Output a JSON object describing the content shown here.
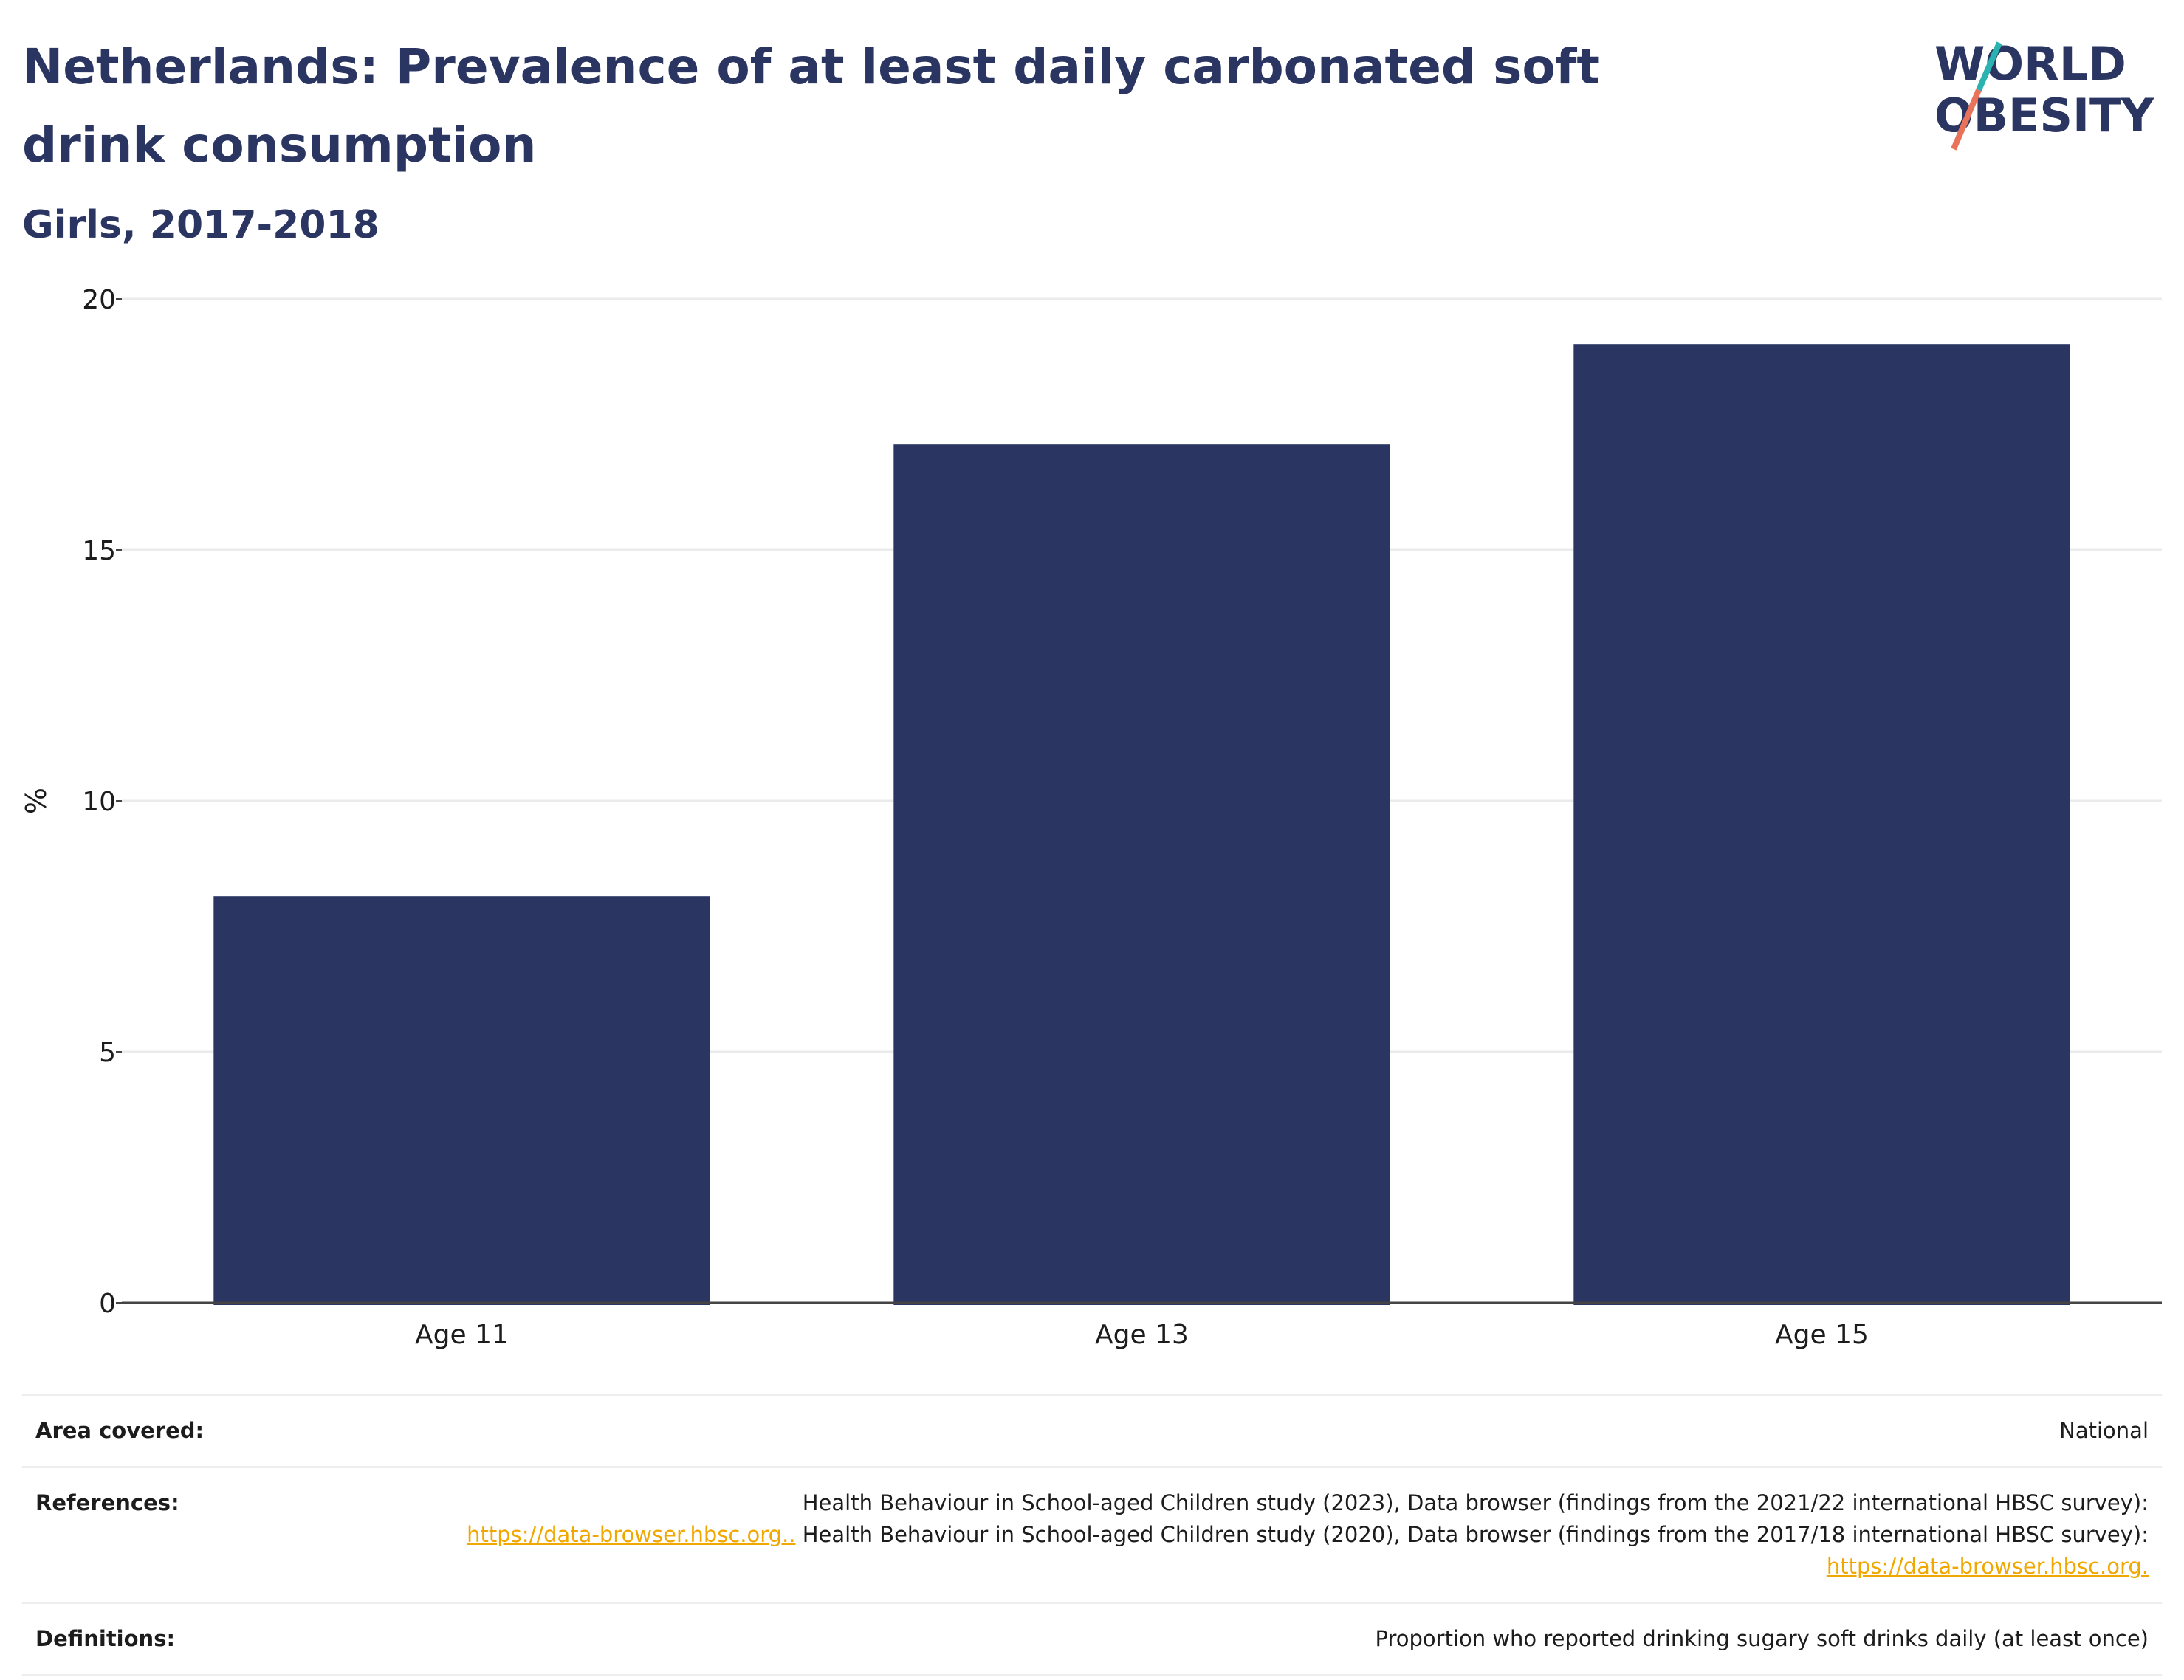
{
  "header": {
    "title": "Netherlands: Prevalence of at least daily carbonated soft drink consumption",
    "subtitle": "Girls, 2017-2018",
    "logo_text_line1": "WORLD",
    "logo_text_line2": "OBESITY"
  },
  "chart_data": {
    "type": "bar",
    "categories": [
      "Age 11",
      "Age 13",
      "Age 15"
    ],
    "values": [
      8.1,
      17.1,
      19.1
    ],
    "ylabel": "%",
    "xlabel": "",
    "ylim": [
      0,
      20
    ],
    "yticks": [
      0,
      5,
      10,
      15,
      20
    ],
    "grid": true,
    "bar_color": "#2a3562"
  },
  "info": {
    "area_label": "Area covered:",
    "area_value": "National",
    "references_label": "References:",
    "references_text1": "Health Behaviour in School-aged Children study (2023), Data browser (findings from the 2021/22 international HBSC survey):",
    "references_link1": "https://data-browser.hbsc.org..",
    "references_text2": " Health Behaviour in School-aged Children study (2020), Data browser (findings from the 2017/18 international HBSC survey): ",
    "references_link2": "https://data-browser.hbsc.org.",
    "definitions_label": "Definitions:",
    "definitions_value": "Proportion who reported drinking sugary soft drinks daily (at least once)"
  },
  "colors": {
    "title": "#2a3562",
    "bar": "#2a3562",
    "link": "#f0a800",
    "logo_teal": "#2bb3b1",
    "logo_coral": "#e8735a"
  }
}
